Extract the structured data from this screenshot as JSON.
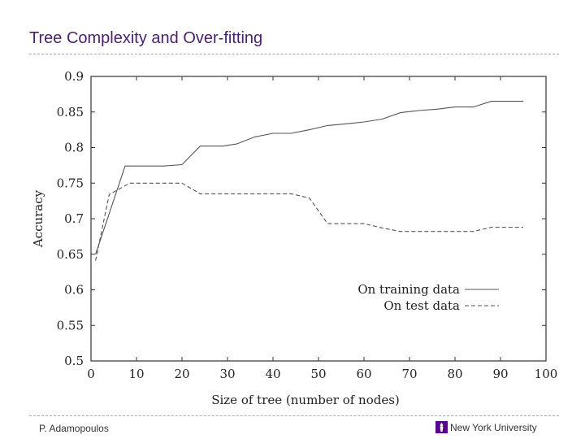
{
  "slide": {
    "title": "Tree Complexity and Over-fitting",
    "footer_author": "P. Adamopoulos",
    "footer_university": "New York University",
    "university_icon": "torch-icon",
    "brand_color": "#57068c"
  },
  "chart_data": {
    "type": "line",
    "title": "",
    "xlabel": "Size of tree (number of nodes)",
    "ylabel": "Accuracy",
    "xlim": [
      0,
      100
    ],
    "ylim": [
      0.5,
      0.9
    ],
    "xticks": [
      0,
      10,
      20,
      30,
      40,
      50,
      60,
      70,
      80,
      90,
      100
    ],
    "yticks": [
      0.5,
      0.55,
      0.6,
      0.65,
      0.7,
      0.75,
      0.8,
      0.85,
      0.9
    ],
    "xtick_labels": [
      "0",
      "10",
      "20",
      "30",
      "40",
      "50",
      "60",
      "70",
      "80",
      "90",
      "100"
    ],
    "ytick_labels": [
      "0.5",
      "0.55",
      "0.6",
      "0.65",
      "0.7",
      "0.75",
      "0.8",
      "0.85",
      "0.9"
    ],
    "grid": false,
    "legend_position": "bottom-right",
    "series": [
      {
        "name": "On training data",
        "style": "solid",
        "x": [
          1,
          7.5,
          16,
          20,
          24,
          29,
          32,
          36,
          40,
          44,
          48,
          52,
          57,
          60,
          64,
          68,
          72,
          76,
          80,
          84,
          88,
          92,
          95
        ],
        "y": [
          0.65,
          0.774,
          0.774,
          0.776,
          0.802,
          0.802,
          0.805,
          0.815,
          0.82,
          0.82,
          0.825,
          0.831,
          0.834,
          0.836,
          0.84,
          0.849,
          0.852,
          0.854,
          0.857,
          0.857,
          0.865,
          0.865,
          0.865
        ]
      },
      {
        "name": "On test data",
        "style": "dashed",
        "x": [
          1,
          4,
          8.5,
          16,
          20,
          24,
          29,
          32,
          40,
          44,
          48,
          52,
          57,
          60,
          64,
          68,
          72,
          76,
          80,
          84,
          88,
          92,
          95
        ],
        "y": [
          0.641,
          0.734,
          0.75,
          0.75,
          0.75,
          0.735,
          0.735,
          0.735,
          0.735,
          0.735,
          0.729,
          0.693,
          0.693,
          0.693,
          0.687,
          0.682,
          0.682,
          0.682,
          0.682,
          0.682,
          0.688,
          0.688,
          0.688
        ]
      }
    ]
  }
}
